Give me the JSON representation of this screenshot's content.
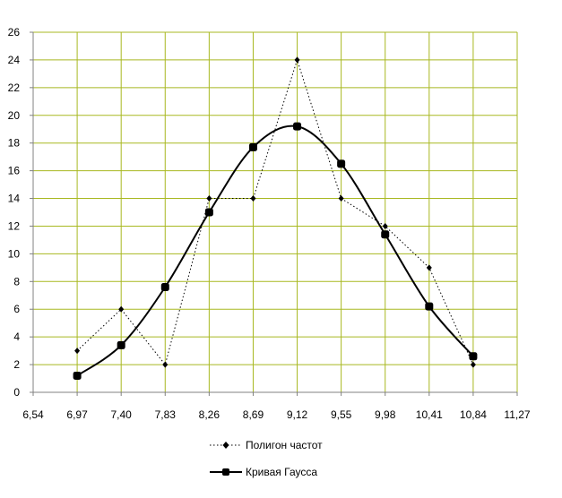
{
  "chart_data": {
    "type": "line",
    "x": [
      "6,97",
      "7,40",
      "7,83",
      "8,26",
      "8,69",
      "9,12",
      "9,55",
      "9,98",
      "10,41",
      "10,84"
    ],
    "x_ticks": [
      "6,54",
      "6,97",
      "7,40",
      "7,83",
      "8,26",
      "8,69",
      "9,12",
      "9,55",
      "9,98",
      "10,41",
      "10,84",
      "11,27"
    ],
    "y_ticks": [
      "0",
      "2",
      "4",
      "6",
      "8",
      "10",
      "12",
      "14",
      "16",
      "18",
      "20",
      "22",
      "24",
      "26"
    ],
    "ylim": [
      0,
      26
    ],
    "grid": true,
    "grid_color": "#a8b820",
    "legend_position": "bottom",
    "series": [
      {
        "name": "Полигон частот",
        "style": "dotted-line-diamond-markers",
        "values": [
          3,
          6,
          2,
          14,
          14,
          24,
          14,
          12,
          9,
          2
        ]
      },
      {
        "name": "Кривая Гаусса",
        "style": "smooth-solid-line-square-markers",
        "values": [
          1.2,
          3.4,
          7.6,
          13,
          17.7,
          19.2,
          16.5,
          11.4,
          6.2,
          2.6
        ]
      }
    ]
  }
}
